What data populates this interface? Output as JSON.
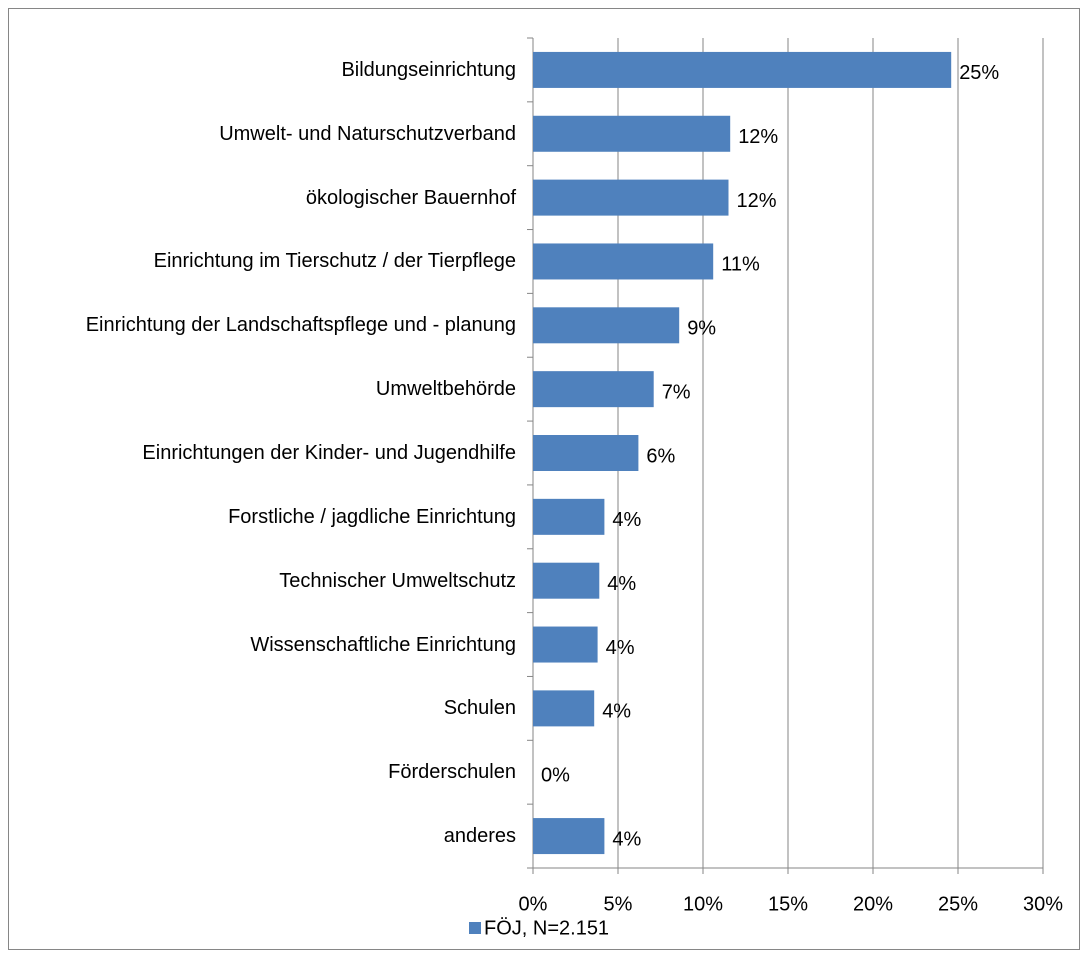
{
  "chart_data": {
    "type": "barh",
    "categories": [
      "Bildungseinrichtung",
      "Umwelt- und Naturschutzverband",
      "ökologischer Bauernhof",
      "Einrichtung im Tierschutz / der Tierpflege",
      "Einrichtung der Landschaftspflege und - planung",
      "Umweltbehörde",
      "Einrichtungen der Kinder- und Jugendhilfe",
      "Forstliche / jagdliche Einrichtung",
      "Technischer Umweltschutz",
      "Wissenschaftliche Einrichtung",
      "Schulen",
      "Förderschulen",
      "anderes"
    ],
    "series": [
      {
        "name": "FÖJ, N=2.151",
        "color": "#4f81bd",
        "values": [
          24.6,
          11.6,
          11.5,
          10.6,
          8.6,
          7.1,
          6.2,
          4.2,
          3.9,
          3.8,
          3.6,
          0,
          4.2
        ],
        "value_labels": [
          "25%",
          "12%",
          "12%",
          "11%",
          "9%",
          "7%",
          "6%",
          "4%",
          "4%",
          "4%",
          "4%",
          "0%",
          "4%"
        ]
      }
    ],
    "xlim": [
      0,
      30
    ],
    "xticks": [
      {
        "value": 0,
        "label": "0%"
      },
      {
        "value": 5,
        "label": "5%"
      },
      {
        "value": 10,
        "label": "10%"
      },
      {
        "value": 15,
        "label": "15%"
      },
      {
        "value": 20,
        "label": "20%"
      },
      {
        "value": 25,
        "label": "25%"
      },
      {
        "value": 30,
        "label": "30%"
      }
    ],
    "grid": true,
    "legend": "bottom"
  }
}
